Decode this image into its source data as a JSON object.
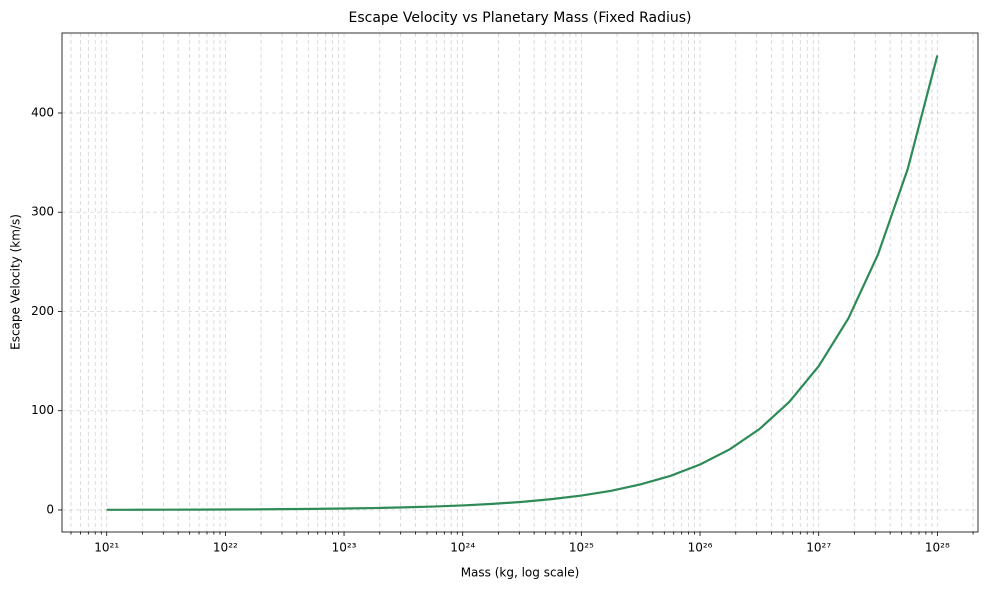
{
  "chart_data": {
    "type": "line",
    "title": "Escape Velocity vs Planetary Mass (Fixed Radius)",
    "x_label": "Mass (kg, log scale)",
    "y_label": "Escape Velocity (km/s)",
    "x_scale": "log",
    "grid": true,
    "minor_grid": true,
    "color": "#2e8b57",
    "x": [
      1e+21,
      1.78e+21,
      3.16e+21,
      5.62e+21,
      1e+22,
      1.78e+22,
      3.16e+22,
      5.62e+22,
      1e+23,
      1.78e+23,
      3.16e+23,
      5.62e+23,
      1e+24,
      1.78e+24,
      3.16e+24,
      5.62e+24,
      1e+25,
      1.78e+25,
      3.16e+25,
      5.62e+25,
      1e+26,
      1.78e+26,
      3.16e+26,
      5.62e+26,
      1e+27,
      1.78e+27,
      3.16e+27,
      5.62e+27,
      1e+28
    ],
    "values": [
      0.14,
      0.19,
      0.26,
      0.34,
      0.46,
      0.61,
      0.81,
      1.09,
      1.45,
      1.93,
      2.58,
      3.43,
      4.58,
      6.11,
      8.14,
      10.9,
      14.5,
      19.3,
      25.8,
      34.3,
      45.8,
      61.1,
      81.4,
      108.6,
      144.8,
      193.1,
      257.5,
      343.4,
      458
    ],
    "xlim": [
      4.2e+20,
      2.2e+28
    ],
    "xticks": [
      {
        "value": 1e+21,
        "label": "10²¹"
      },
      {
        "value": 1e+22,
        "label": "10²²"
      },
      {
        "value": 1e+23,
        "label": "10²³"
      },
      {
        "value": 1e+24,
        "label": "10²⁴"
      },
      {
        "value": 1e+25,
        "label": "10²⁵"
      },
      {
        "value": 1e+26,
        "label": "10²⁶"
      },
      {
        "value": 1e+27,
        "label": "10²⁷"
      },
      {
        "value": 1e+28,
        "label": "10²⁸"
      }
    ],
    "ylim": [
      -22.2,
      480.6
    ],
    "yticks": [
      0,
      100,
      200,
      300,
      400
    ]
  }
}
